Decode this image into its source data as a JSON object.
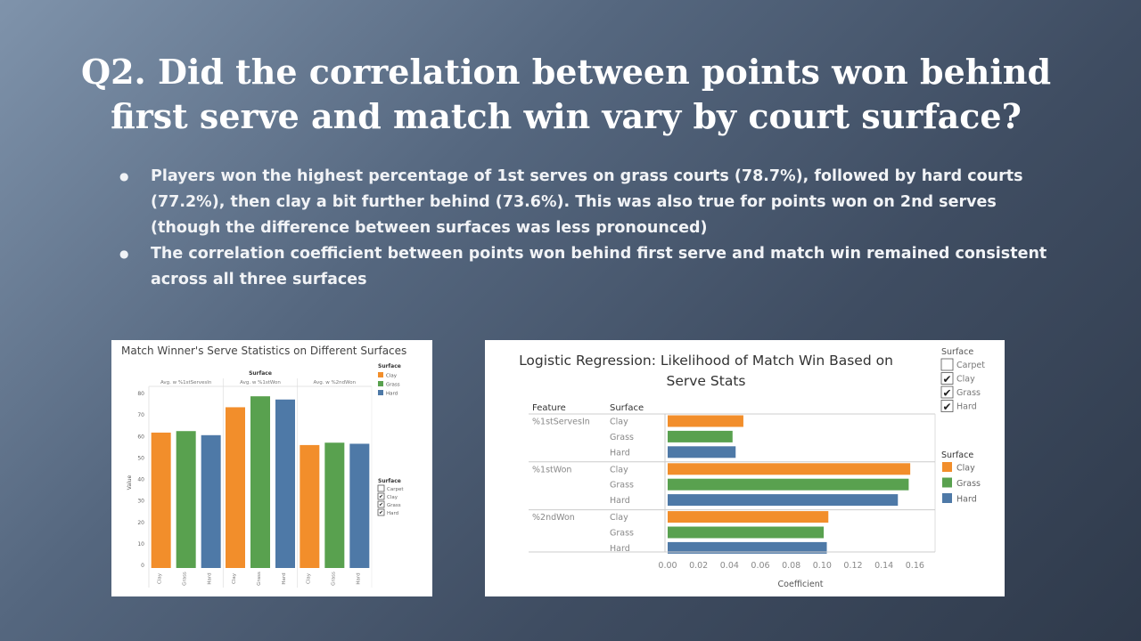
{
  "slide": {
    "title": "Q2. Did the correlation between points won behind first serve and match win vary by court surface?",
    "bullets": [
      "Players won the highest percentage of 1st serves on grass courts (78.7%), followed by hard courts (77.2%), then clay a bit further behind (73.6%). This was also true for points won on 2nd serves (though the difference between surfaces was less pronounced)",
      "The  correlation coefficient between points won behind first serve and match win remained consistent across all three surfaces"
    ]
  },
  "colors": {
    "Clay": "#f28e2b",
    "Grass": "#59a14f",
    "Hard": "#4e79a7"
  },
  "chart_data": [
    {
      "type": "bar",
      "title": "Match Winner's Serve Statistics on Different Surfaces",
      "column_header": "Surface",
      "groups": [
        "Avg. w %1stServesIn",
        "Avg. w %1stWon",
        "Avg. w %2ndWon"
      ],
      "categories": [
        "Clay",
        "Grass",
        "Hard"
      ],
      "series": [
        {
          "name": "Avg. w %1stServesIn",
          "values": [
            61.8,
            62.5,
            60.6
          ]
        },
        {
          "name": "Avg. w %1stWon",
          "values": [
            73.6,
            78.7,
            77.2
          ]
        },
        {
          "name": "Avg. w %2ndWon",
          "values": [
            56.0,
            57.1,
            56.6
          ]
        }
      ],
      "ylabel": "Value",
      "ylim": [
        0,
        85
      ],
      "yticks": [
        0,
        10,
        20,
        30,
        40,
        50,
        60,
        70,
        80
      ],
      "legend": {
        "title": "Surface",
        "entries": [
          "Clay",
          "Grass",
          "Hard"
        ],
        "placement": "right"
      },
      "filter": {
        "title": "Surface",
        "options": [
          "Carpet",
          "Clay",
          "Grass",
          "Hard"
        ],
        "checked": [
          false,
          true,
          true,
          true
        ]
      },
      "grid": false
    },
    {
      "type": "bar",
      "orientation": "horizontal",
      "title": "Logistic Regression: Likelihood of Match Win Based on Serve Stats",
      "row_headers": [
        "Feature",
        "Surface"
      ],
      "features": [
        "%1stServesIn",
        "%1stWon",
        "%2ndWon"
      ],
      "surfaces": [
        "Clay",
        "Grass",
        "Hard"
      ],
      "values": [
        [
          0.049,
          0.042,
          0.044
        ],
        [
          0.157,
          0.156,
          0.149
        ],
        [
          0.104,
          0.101,
          0.103
        ]
      ],
      "xlabel": "Coefficient",
      "xlim": [
        0,
        0.165
      ],
      "xticks": [
        "0.00",
        "0.02",
        "0.04",
        "0.06",
        "0.08",
        "0.10",
        "0.12",
        "0.14",
        "0.16"
      ],
      "filter": {
        "title": "Surface",
        "options": [
          "Carpet",
          "Clay",
          "Grass",
          "Hard"
        ],
        "checked": [
          false,
          true,
          true,
          true
        ]
      },
      "legend": {
        "title": "Surface",
        "entries": [
          "Clay",
          "Grass",
          "Hard"
        ],
        "placement": "right"
      },
      "grid": false
    }
  ]
}
